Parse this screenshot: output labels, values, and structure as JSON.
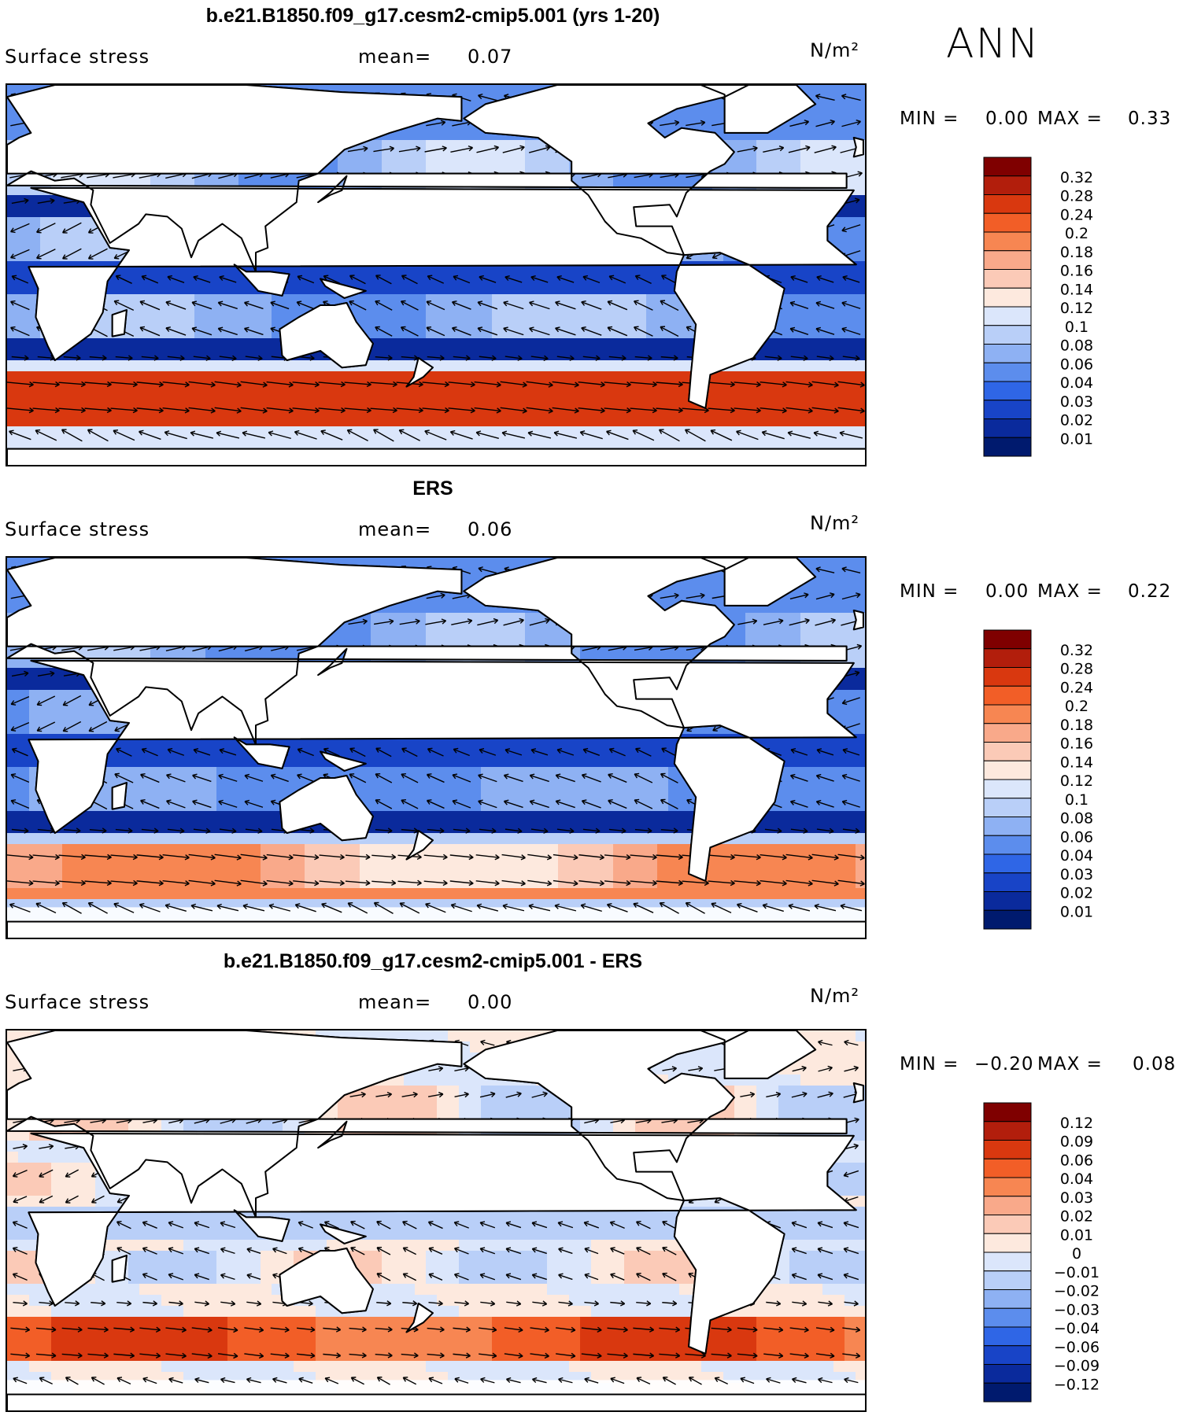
{
  "season": "ANN",
  "variable": "Surface stress",
  "units": "N/m²",
  "mean_label": "mean=",
  "min_label": "MIN =",
  "max_label": "MAX =",
  "panels": [
    {
      "title": "b.e21.B1850.f09_g17.cesm2-cmip5.001 (yrs 1-20)",
      "mean": "0.07",
      "min": "0.00",
      "max": "0.33",
      "colorbar": {
        "levels": [
          "0.32",
          "0.28",
          "0.24",
          "0.2",
          "0.18",
          "0.16",
          "0.14",
          "0.12",
          "0.1",
          "0.08",
          "0.06",
          "0.04",
          "0.03",
          "0.02",
          "0.01"
        ],
        "colors": [
          "#7f0000",
          "#b21e0c",
          "#d9380f",
          "#f25e27",
          "#f78652",
          "#f9a98a",
          "#fbcab7",
          "#fde9de",
          "#dbe6fb",
          "#b9cff8",
          "#8eb1f3",
          "#5c8ded",
          "#2f66e6",
          "#1844c7",
          "#0a2a9c",
          "#001a6e"
        ]
      },
      "chart_data": {
        "type": "heatmap",
        "description_field": "surface wind stress magnitude with vector arrows",
        "map_style": "model",
        "field_range": [
          0.0,
          0.33
        ]
      }
    },
    {
      "title": "ERS",
      "mean": "0.06",
      "min": "0.00",
      "max": "0.22",
      "colorbar": {
        "levels": [
          "0.32",
          "0.28",
          "0.24",
          "0.2",
          "0.18",
          "0.16",
          "0.14",
          "0.12",
          "0.1",
          "0.08",
          "0.06",
          "0.04",
          "0.03",
          "0.02",
          "0.01"
        ],
        "colors": [
          "#7f0000",
          "#b21e0c",
          "#d9380f",
          "#f25e27",
          "#f78652",
          "#f9a98a",
          "#fbcab7",
          "#fde9de",
          "#dbe6fb",
          "#b9cff8",
          "#8eb1f3",
          "#5c8ded",
          "#2f66e6",
          "#1844c7",
          "#0a2a9c",
          "#001a6e"
        ]
      },
      "chart_data": {
        "type": "heatmap",
        "map_style": "obs",
        "field_range": [
          0.0,
          0.22
        ]
      }
    },
    {
      "title": "b.e21.B1850.f09_g17.cesm2-cmip5.001 - ERS",
      "mean": "0.00",
      "min": "−0.20",
      "max": "0.08",
      "colorbar": {
        "levels": [
          "0.12",
          "0.09",
          "0.06",
          "0.04",
          "0.03",
          "0.02",
          "0.01",
          "0",
          "−0.01",
          "−0.02",
          "−0.03",
          "−0.04",
          "−0.06",
          "−0.09",
          "−0.12"
        ],
        "colors": [
          "#7f0000",
          "#b21e0c",
          "#d9380f",
          "#f25e27",
          "#f78652",
          "#f9a98a",
          "#fbcab7",
          "#fde9de",
          "#dbe6fb",
          "#b9cff8",
          "#8eb1f3",
          "#5c8ded",
          "#2f66e6",
          "#1844c7",
          "#0a2a9c",
          "#001a6e"
        ]
      },
      "chart_data": {
        "type": "heatmap",
        "map_style": "diff",
        "field_range": [
          -0.2,
          0.08
        ]
      }
    }
  ]
}
